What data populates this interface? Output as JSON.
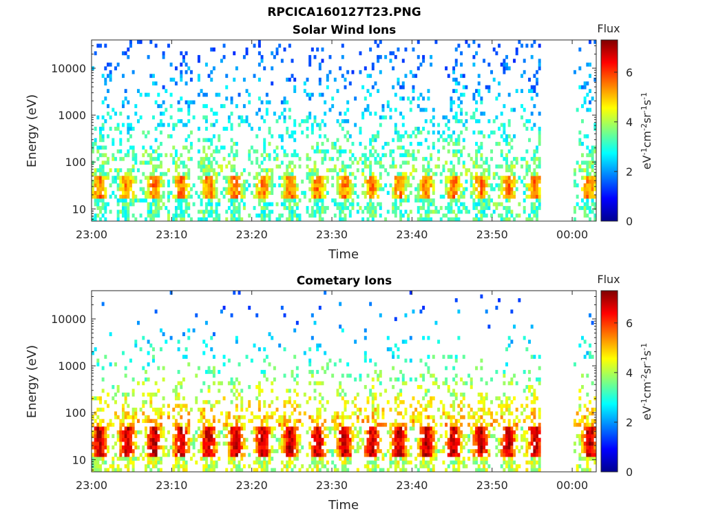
{
  "figure": {
    "title": "RPCICA160127T23.PNG"
  },
  "chart_data": [
    {
      "type": "heatmap",
      "title": "Solar Wind Ions",
      "xlabel": "Time",
      "ylabel": "Energy (eV)",
      "x_ticks": [
        "23:00",
        "23:10",
        "23:20",
        "23:30",
        "23:40",
        "23:50",
        "00:00"
      ],
      "x_range": [
        "23:00",
        "00:03"
      ],
      "y_scale": "log",
      "y_ticks": [
        "10",
        "100",
        "1000",
        "10000"
      ],
      "y_range": [
        5.5,
        40000
      ],
      "data_gap": [
        "23:56",
        "00:00"
      ],
      "colorbar": {
        "title": "Flux",
        "label": "eV-1cm-2sr-1s-1",
        "ticks": [
          "0",
          "2",
          "4",
          "6"
        ],
        "range": [
          0,
          7.3
        ],
        "colormap": "jet"
      },
      "core_band_eV": [
        15,
        45
      ],
      "core_flux_peak": 5.5,
      "grid": false
    },
    {
      "type": "heatmap",
      "title": "Cometary Ions",
      "xlabel": "Time",
      "ylabel": "Energy (eV)",
      "x_ticks": [
        "23:00",
        "23:10",
        "23:20",
        "23:30",
        "23:40",
        "23:50",
        "00:00"
      ],
      "x_range": [
        "23:00",
        "00:03"
      ],
      "y_scale": "log",
      "y_ticks": [
        "10",
        "100",
        "1000",
        "10000"
      ],
      "y_range": [
        5.5,
        40000
      ],
      "data_gap": [
        "23:56",
        "00:00"
      ],
      "colorbar": {
        "title": "Flux",
        "label": "eV-1cm-2sr-1s-1",
        "ticks": [
          "0",
          "2",
          "4",
          "6"
        ],
        "range": [
          0,
          7.3
        ],
        "colormap": "jet"
      },
      "core_band_eV": [
        10,
        45
      ],
      "core_flux_peak": 6.8,
      "grid": false
    }
  ]
}
